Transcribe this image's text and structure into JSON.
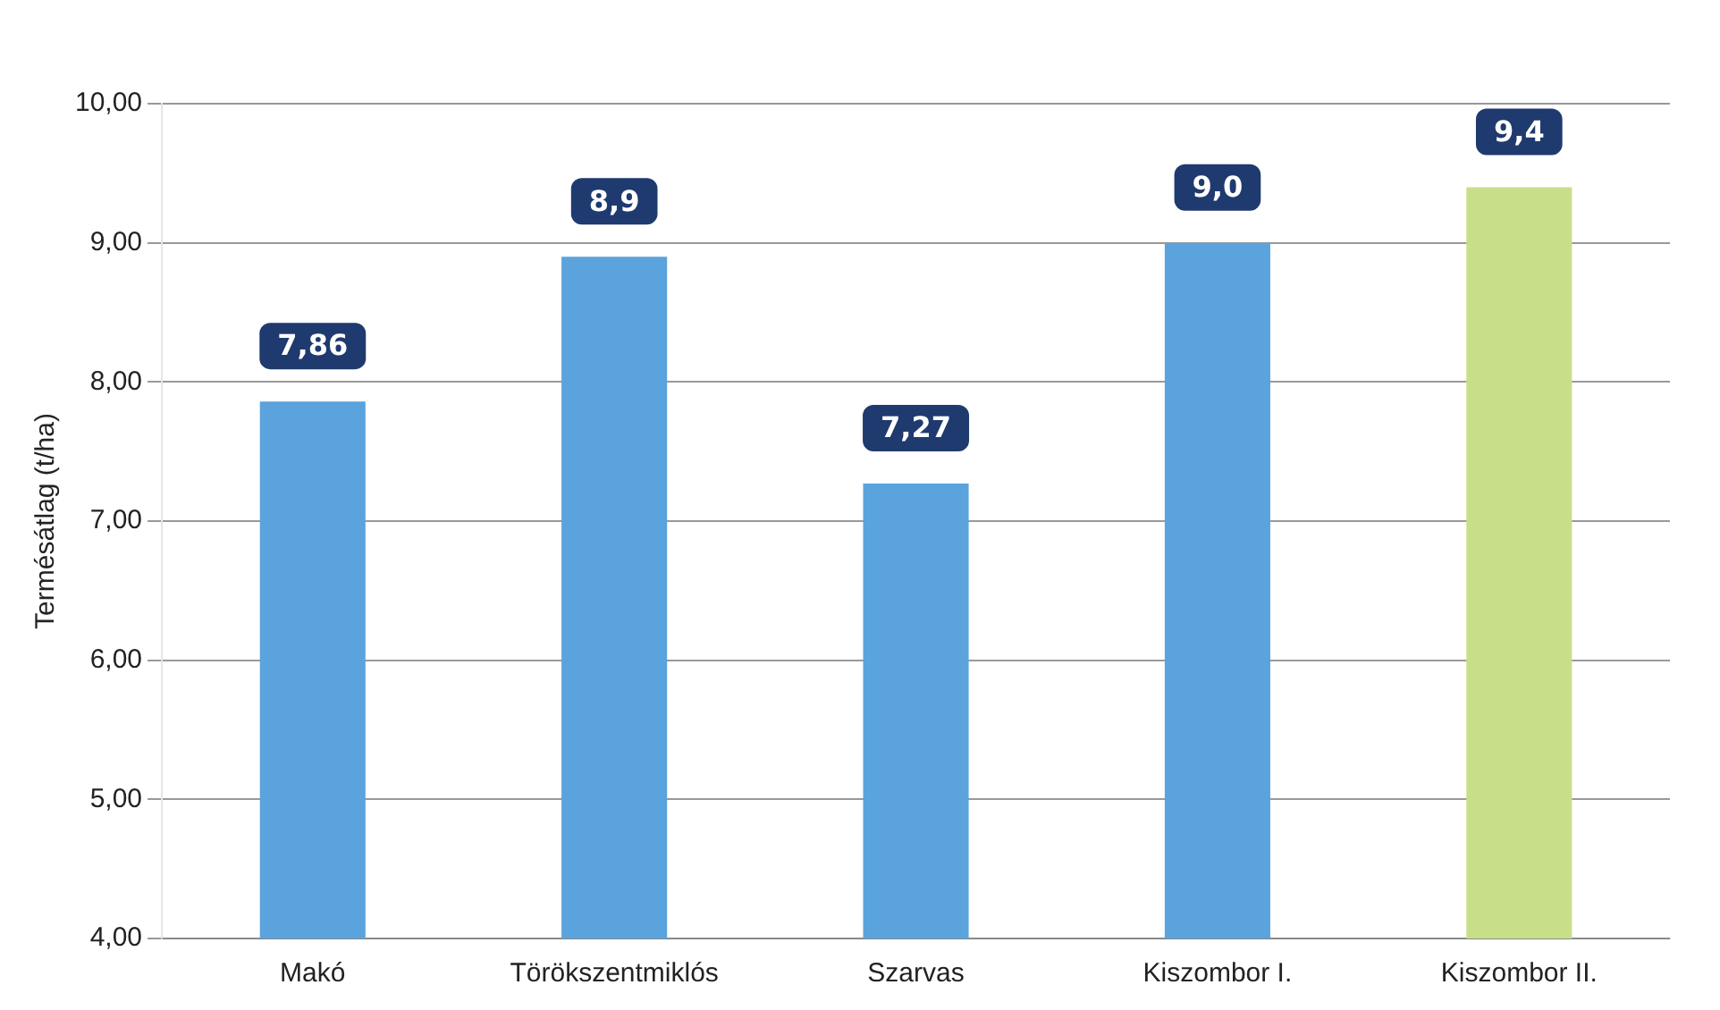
{
  "chart_data": {
    "type": "bar",
    "ylabel": "Termésátlag (t/ha)",
    "categories": [
      "Makó",
      "Törökszentmiklós",
      "Szarvas",
      "Kiszombor I.",
      "Kiszombor II."
    ],
    "values": [
      7.86,
      8.9,
      7.27,
      9.0,
      9.4
    ],
    "colors": [
      "#5ba3dc",
      "#5ba3dc",
      "#5ba3dc",
      "#5ba3dc",
      "#c8df8a"
    ],
    "value_labels": [
      "7,86",
      "8,9",
      "7,27",
      "9,0",
      "9,4"
    ],
    "ylim": [
      4,
      10
    ],
    "yticks": [
      {
        "value": 4,
        "label": "4,00"
      },
      {
        "value": 5,
        "label": "5,00"
      },
      {
        "value": 6,
        "label": "6,00"
      },
      {
        "value": 7,
        "label": "7,00"
      },
      {
        "value": 8,
        "label": "8,00"
      },
      {
        "value": 9,
        "label": "9,00"
      },
      {
        "value": 10,
        "label": "10,00"
      }
    ],
    "grid": "y"
  }
}
